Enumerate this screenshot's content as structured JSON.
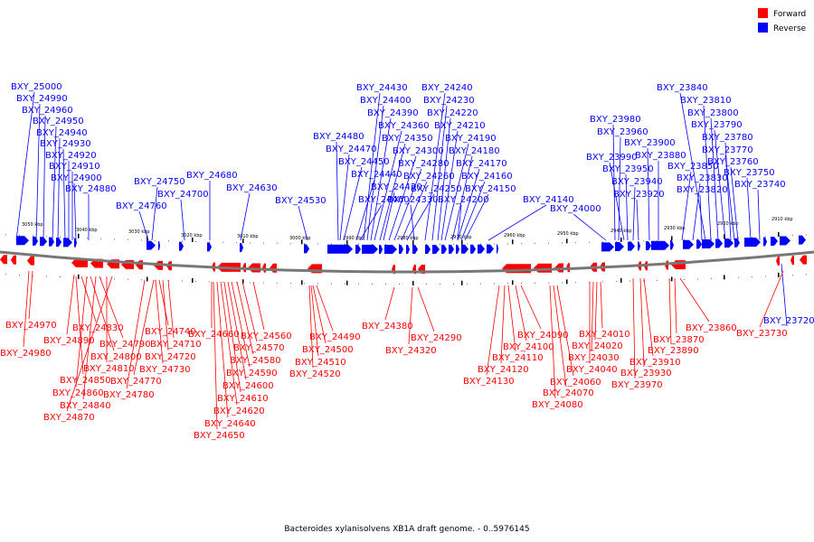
{
  "caption": "Bacteroides xylanisolvens XB1A draft genome. - 0..5976145",
  "legend": [
    {
      "label": "Forward",
      "color": "#ff0000"
    },
    {
      "label": "Reverse",
      "color": "#0000ff"
    }
  ],
  "colors": {
    "forward": "#ff0000",
    "reverse": "#0000ff",
    "backbone": "#777777"
  },
  "scale_labels": [
    "3050 kbp",
    "3040 kbp",
    "3030 kbp",
    "3020 kbp",
    "3010 kbp",
    "3000 kbp",
    "2990 kbp",
    "2980 kbp",
    "2970 kbp",
    "2960 kbp",
    "2950 kbp",
    "2940 kbp",
    "2930 kbp",
    "2920 kbp",
    "2910 kbp"
  ],
  "reverse_labels": [
    "BXY_25000",
    "BXY_24990",
    "BXY_24960",
    "BXY_24950",
    "BXY_24940",
    "BXY_24930",
    "BXY_24920",
    "BXY_24910",
    "BXY_24900",
    "BXY_24880",
    "BXY_24760",
    "BXY_24750",
    "BXY_24700",
    "BXY_24680",
    "BXY_24630",
    "BXY_24530",
    "BXY_24480",
    "BXY_24470",
    "BXY_24450",
    "BXY_24440",
    "BXY_24460",
    "BXY_24430",
    "BXY_24400",
    "BXY_24390",
    "BXY_24360",
    "BXY_24350",
    "BXY_24300",
    "BXY_24280",
    "BXY_24260",
    "BXY_24250",
    "BXY_24420",
    "BXY_24330",
    "BXY_24240",
    "BXY_24230",
    "BXY_24220",
    "BXY_24210",
    "BXY_24190",
    "BXY_24180",
    "BXY_24170",
    "BXY_24160",
    "BXY_24150",
    "BXY_24200",
    "BXY_24140",
    "BXY_24000",
    "BXY_23980",
    "BXY_23960",
    "BXY_23990",
    "BXY_23950",
    "BXY_23940",
    "BXY_23920",
    "BXY_23900",
    "BXY_23880",
    "BXY_23850",
    "BXY_23830",
    "BXY_23820",
    "BXY_23840",
    "BXY_23810",
    "BXY_23800",
    "BXY_23790",
    "BXY_23780",
    "BXY_23770",
    "BXY_23760",
    "BXY_23750",
    "BXY_23740",
    "BXY_23720"
  ],
  "forward_labels": [
    "BXY_24970",
    "BXY_24980",
    "BXY_24890",
    "BXY_24830",
    "BXY_24800",
    "BXY_24790",
    "BXY_24810",
    "BXY_24850",
    "BXY_24860",
    "BXY_24840",
    "BXY_24870",
    "BXY_24740",
    "BXY_24720",
    "BXY_24710",
    "BXY_24770",
    "BXY_24730",
    "BXY_24780",
    "BXY_24660",
    "BXY_24560",
    "BXY_24570",
    "BXY_24580",
    "BXY_24590",
    "BXY_24600",
    "BXY_24610",
    "BXY_24620",
    "BXY_24640",
    "BXY_24650",
    "BXY_24490",
    "BXY_24500",
    "BXY_24510",
    "BXY_24520",
    "BXY_24380",
    "BXY_24290",
    "BXY_24320",
    "BXY_24090",
    "BXY_24100",
    "BXY_24110",
    "BXY_24120",
    "BXY_24130",
    "BXY_24060",
    "BXY_24070",
    "BXY_24080",
    "BXY_24010",
    "BXY_24020",
    "BXY_24030",
    "BXY_24040",
    "BXY_23870",
    "BXY_23890",
    "BXY_23910",
    "BXY_23930",
    "BXY_23970",
    "BXY_23860",
    "BXY_23730"
  ]
}
